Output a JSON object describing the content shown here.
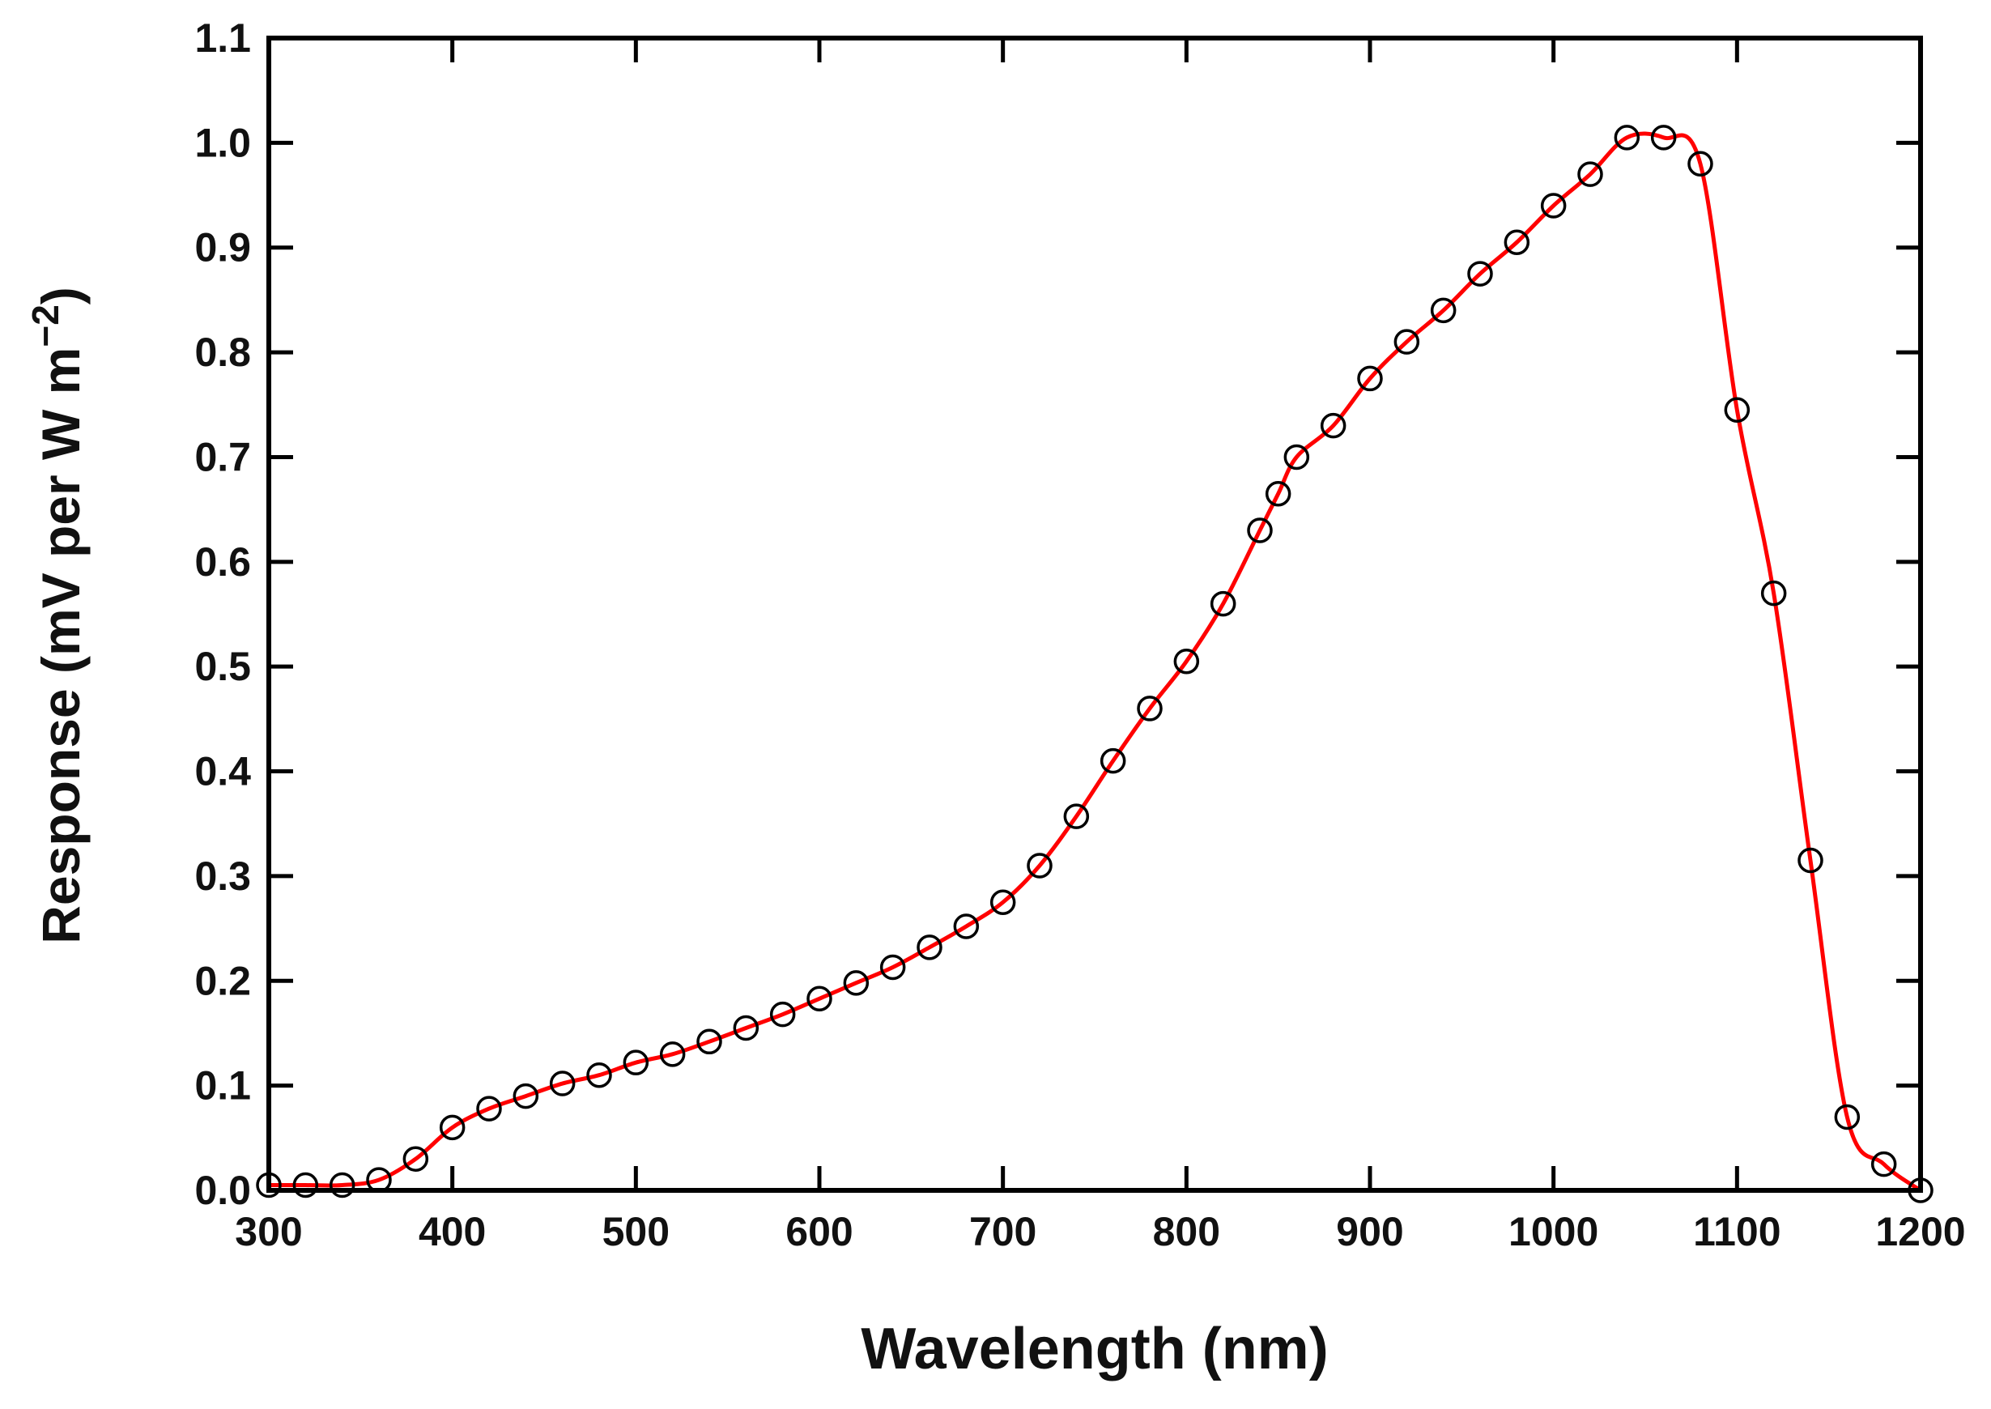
{
  "chart_data": {
    "type": "line",
    "title": "",
    "xlabel": "Wavelength (nm)",
    "ylabel": "Response (mV per W m",
    "ylabel_superscript": "−2",
    "ylabel_close": ")",
    "xlim": [
      300,
      1200
    ],
    "ylim": [
      0.0,
      1.1
    ],
    "xticks": [
      300,
      400,
      500,
      600,
      700,
      800,
      900,
      1000,
      1100,
      1200
    ],
    "yticks": [
      "0.0",
      "0.1",
      "0.2",
      "0.3",
      "0.4",
      "0.5",
      "0.6",
      "0.7",
      "0.8",
      "0.9",
      "1.0",
      "1.1"
    ],
    "grid": false,
    "colors": {
      "line": "#ff0000",
      "markers": "#000000",
      "axes": "#000000"
    },
    "series": [
      {
        "style": "open-circle markers with smooth red fitted line",
        "x": [
          300,
          320,
          340,
          360,
          380,
          400,
          420,
          440,
          460,
          480,
          500,
          520,
          540,
          560,
          580,
          600,
          620,
          640,
          660,
          680,
          700,
          720,
          740,
          760,
          780,
          800,
          820,
          840,
          850,
          860,
          880,
          900,
          920,
          940,
          960,
          980,
          1000,
          1020,
          1040,
          1060,
          1080,
          1100,
          1120,
          1140,
          1160,
          1180,
          1200
        ],
        "y": [
          0.005,
          0.005,
          0.005,
          0.01,
          0.03,
          0.06,
          0.078,
          0.09,
          0.102,
          0.11,
          0.122,
          0.13,
          0.142,
          0.155,
          0.168,
          0.183,
          0.198,
          0.213,
          0.232,
          0.252,
          0.275,
          0.31,
          0.357,
          0.41,
          0.46,
          0.505,
          0.56,
          0.63,
          0.665,
          0.7,
          0.73,
          0.775,
          0.81,
          0.84,
          0.875,
          0.905,
          0.94,
          0.97,
          1.005,
          1.005,
          0.98,
          0.745,
          0.57,
          0.315,
          0.07,
          0.025,
          0.0
        ]
      }
    ]
  }
}
